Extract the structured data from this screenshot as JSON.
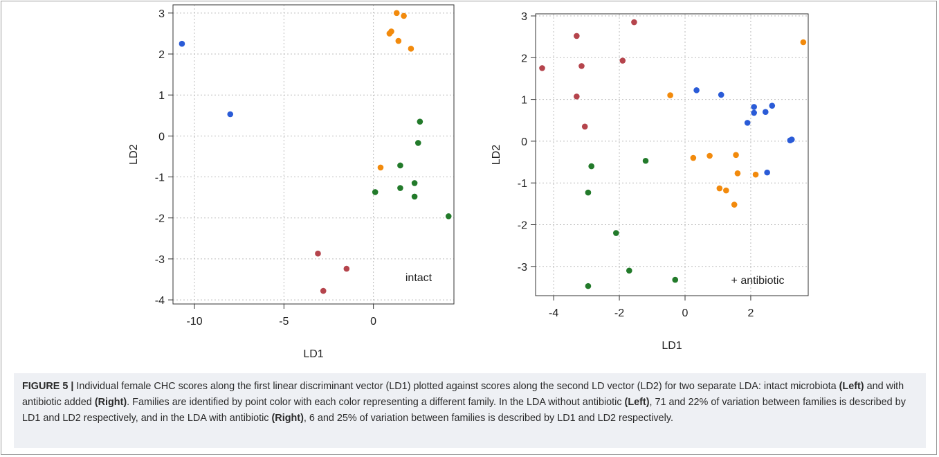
{
  "colors": {
    "blue": "#2a5bd7",
    "orange": "#f28a0c",
    "green": "#227a2a",
    "red": "#b5444c",
    "grid": "#bdbdbd",
    "axis": "#333333",
    "caption_bg": "#eef0f4"
  },
  "chart_data": [
    {
      "type": "scatter",
      "xlabel": "LD1",
      "ylabel": "LD2",
      "annotation": "intact",
      "xlim": [
        -11.2,
        4.5
      ],
      "ylim": [
        -4.1,
        3.2
      ],
      "xticks": [
        -10,
        -5,
        0
      ],
      "yticks": [
        -4,
        -3,
        -2,
        -1,
        0,
        1,
        2,
        3
      ],
      "grid": true,
      "series": [
        {
          "color": "blue",
          "points": [
            [
              -10.7,
              2.25
            ],
            [
              -8.0,
              0.53
            ]
          ]
        },
        {
          "color": "orange",
          "points": [
            [
              1.3,
              3.0
            ],
            [
              1.7,
              2.93
            ],
            [
              1.0,
              2.55
            ],
            [
              0.9,
              2.5
            ],
            [
              1.4,
              2.32
            ],
            [
              2.1,
              2.13
            ],
            [
              0.4,
              -0.77
            ]
          ]
        },
        {
          "color": "green",
          "points": [
            [
              2.6,
              0.35
            ],
            [
              2.5,
              -0.17
            ],
            [
              1.5,
              -0.72
            ],
            [
              2.3,
              -1.15
            ],
            [
              1.5,
              -1.27
            ],
            [
              0.1,
              -1.37
            ],
            [
              2.3,
              -1.48
            ],
            [
              4.2,
              -1.96
            ]
          ]
        },
        {
          "color": "red",
          "points": [
            [
              -3.1,
              -2.87
            ],
            [
              -1.5,
              -3.24
            ],
            [
              -2.8,
              -3.78
            ]
          ]
        }
      ]
    },
    {
      "type": "scatter",
      "xlabel": "LD1",
      "ylabel": "LD2",
      "annotation": "+ antibiotic",
      "xlim": [
        -4.55,
        3.75
      ],
      "ylim": [
        -3.7,
        3.05
      ],
      "xticks": [
        -4,
        -2,
        0,
        2
      ],
      "yticks": [
        -3,
        -2,
        -1,
        0,
        1,
        2,
        3
      ],
      "grid": true,
      "series": [
        {
          "color": "red",
          "points": [
            [
              -1.55,
              2.85
            ],
            [
              -3.3,
              2.52
            ],
            [
              -4.35,
              1.75
            ],
            [
              -3.15,
              1.8
            ],
            [
              -1.9,
              1.93
            ],
            [
              -3.3,
              1.07
            ],
            [
              -3.05,
              0.35
            ]
          ]
        },
        {
          "color": "orange",
          "points": [
            [
              3.6,
              2.37
            ],
            [
              -0.45,
              1.1
            ],
            [
              0.25,
              -0.4
            ],
            [
              0.75,
              -0.35
            ],
            [
              1.55,
              -0.33
            ],
            [
              1.6,
              -0.77
            ],
            [
              2.15,
              -0.8
            ],
            [
              1.05,
              -1.13
            ],
            [
              1.25,
              -1.18
            ],
            [
              1.5,
              -1.52
            ]
          ]
        },
        {
          "color": "blue",
          "points": [
            [
              0.35,
              1.22
            ],
            [
              1.1,
              1.11
            ],
            [
              2.1,
              0.82
            ],
            [
              2.65,
              0.85
            ],
            [
              2.1,
              0.68
            ],
            [
              2.45,
              0.7
            ],
            [
              1.9,
              0.44
            ],
            [
              3.2,
              0.02
            ],
            [
              3.25,
              0.04
            ],
            [
              2.5,
              -0.75
            ]
          ]
        },
        {
          "color": "green",
          "points": [
            [
              -2.85,
              -0.6
            ],
            [
              -1.2,
              -0.47
            ],
            [
              -2.95,
              -1.23
            ],
            [
              -2.1,
              -2.2
            ],
            [
              -1.7,
              -3.1
            ],
            [
              -0.3,
              -3.32
            ],
            [
              -2.95,
              -3.47
            ]
          ]
        }
      ]
    }
  ],
  "caption": {
    "label": "FIGURE 5 |",
    "p1": " Individual female CHC scores along the first linear discriminant vector (LD1) plotted against scores along the second LD vector (LD2) for two separate LDA: intact microbiota ",
    "left1": "(Left)",
    "p2": " and with antibiotic added ",
    "right1": "(Right)",
    "p3": ". Families are identified by point color with each color representing a different family. In the LDA without antibiotic ",
    "left2": "(Left)",
    "p4": ", 71 and 22% of variation between families is described by LD1 and LD2 respectively, and in the LDA with antibiotic ",
    "right2": "(Right)",
    "p5": ", 6 and 25% of variation between families is described by LD1 and LD2 respectively."
  }
}
